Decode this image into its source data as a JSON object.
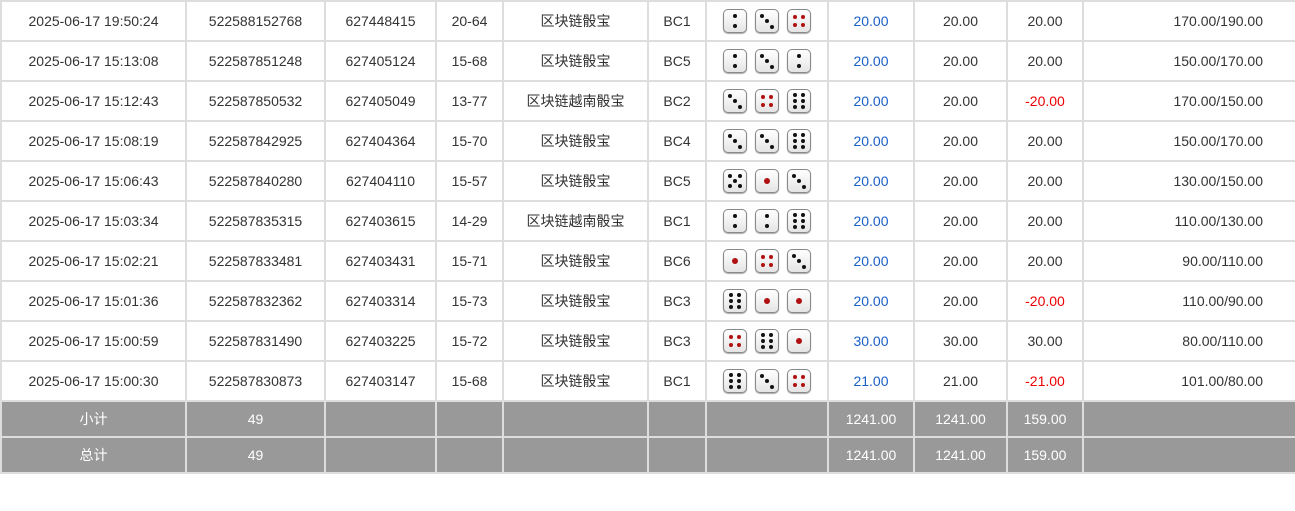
{
  "rows": [
    {
      "time": "2025-06-17 19:50:24",
      "order": "522588152768",
      "issue": "627448415",
      "table": "20-64",
      "game": "区块链骰宝",
      "room": "BC1",
      "dice": [
        2,
        3,
        4
      ],
      "bet": "20.00",
      "valid": "20.00",
      "win": "20.00",
      "balance": "170.00/190.00"
    },
    {
      "time": "2025-06-17 15:13:08",
      "order": "522587851248",
      "issue": "627405124",
      "table": "15-68",
      "game": "区块链骰宝",
      "room": "BC5",
      "dice": [
        2,
        3,
        2
      ],
      "bet": "20.00",
      "valid": "20.00",
      "win": "20.00",
      "balance": "150.00/170.00"
    },
    {
      "time": "2025-06-17 15:12:43",
      "order": "522587850532",
      "issue": "627405049",
      "table": "13-77",
      "game": "区块链越南骰宝",
      "room": "BC2",
      "dice": [
        3,
        4,
        6
      ],
      "bet": "20.00",
      "valid": "20.00",
      "win": "-20.00",
      "balance": "170.00/150.00"
    },
    {
      "time": "2025-06-17 15:08:19",
      "order": "522587842925",
      "issue": "627404364",
      "table": "15-70",
      "game": "区块链骰宝",
      "room": "BC4",
      "dice": [
        3,
        3,
        6
      ],
      "bet": "20.00",
      "valid": "20.00",
      "win": "20.00",
      "balance": "150.00/170.00"
    },
    {
      "time": "2025-06-17 15:06:43",
      "order": "522587840280",
      "issue": "627404110",
      "table": "15-57",
      "game": "区块链骰宝",
      "room": "BC5",
      "dice": [
        5,
        1,
        3
      ],
      "bet": "20.00",
      "valid": "20.00",
      "win": "20.00",
      "balance": "130.00/150.00"
    },
    {
      "time": "2025-06-17 15:03:34",
      "order": "522587835315",
      "issue": "627403615",
      "table": "14-29",
      "game": "区块链越南骰宝",
      "room": "BC1",
      "dice": [
        2,
        2,
        6
      ],
      "bet": "20.00",
      "valid": "20.00",
      "win": "20.00",
      "balance": "110.00/130.00"
    },
    {
      "time": "2025-06-17 15:02:21",
      "order": "522587833481",
      "issue": "627403431",
      "table": "15-71",
      "game": "区块链骰宝",
      "room": "BC6",
      "dice": [
        1,
        4,
        3
      ],
      "bet": "20.00",
      "valid": "20.00",
      "win": "20.00",
      "balance": "90.00/110.00"
    },
    {
      "time": "2025-06-17 15:01:36",
      "order": "522587832362",
      "issue": "627403314",
      "table": "15-73",
      "game": "区块链骰宝",
      "room": "BC3",
      "dice": [
        6,
        1,
        1
      ],
      "bet": "20.00",
      "valid": "20.00",
      "win": "-20.00",
      "balance": "110.00/90.00"
    },
    {
      "time": "2025-06-17 15:00:59",
      "order": "522587831490",
      "issue": "627403225",
      "table": "15-72",
      "game": "区块链骰宝",
      "room": "BC3",
      "dice": [
        4,
        6,
        1
      ],
      "bet": "30.00",
      "valid": "30.00",
      "win": "30.00",
      "balance": "80.00/110.00"
    },
    {
      "time": "2025-06-17 15:00:30",
      "order": "522587830873",
      "issue": "627403147",
      "table": "15-68",
      "game": "区块链骰宝",
      "room": "BC1",
      "dice": [
        6,
        3,
        4
      ],
      "bet": "21.00",
      "valid": "21.00",
      "win": "-21.00",
      "balance": "101.00/80.00"
    }
  ],
  "subtotal": {
    "label": "小计",
    "count": "49",
    "bet": "1241.00",
    "valid": "1241.00",
    "win": "159.00"
  },
  "total": {
    "label": "总计",
    "count": "49",
    "bet": "1241.00",
    "valid": "1241.00",
    "win": "159.00"
  },
  "colors": {
    "bet": "#1a5fc6",
    "loss": "#e00000",
    "footer": "#999999"
  }
}
